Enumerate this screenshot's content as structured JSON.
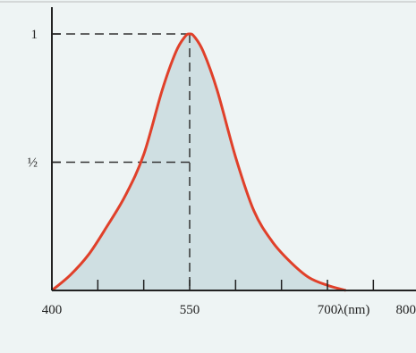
{
  "chart_data": {
    "type": "area",
    "title": "",
    "xlabel": "λ(nm)",
    "ylabel": "",
    "xlim": [
      400,
      800
    ],
    "ylim": [
      0,
      1
    ],
    "x_ticks": [
      400,
      550,
      700,
      800
    ],
    "x_tick_labels": [
      "400",
      "550",
      "700",
      "800"
    ],
    "y_ticks": [
      0.5,
      1
    ],
    "y_tick_labels": [
      "½",
      "1"
    ],
    "grid": false,
    "legend": "none",
    "series": [
      {
        "x": [
          400,
          420,
          440,
          460,
          480,
          500,
          520,
          535,
          545,
          550,
          555,
          565,
          580,
          600,
          620,
          640,
          660,
          680,
          700,
          720
        ],
        "y": [
          0.0,
          0.06,
          0.14,
          0.25,
          0.37,
          0.53,
          0.78,
          0.93,
          0.99,
          1.0,
          0.99,
          0.93,
          0.78,
          0.52,
          0.31,
          0.19,
          0.11,
          0.05,
          0.02,
          0.0
        ]
      }
    ],
    "reference_lines": [
      {
        "axis": "x",
        "value": 550
      },
      {
        "axis": "y",
        "value": 1
      },
      {
        "axis": "y",
        "value": 0.5
      }
    ],
    "colors": {
      "curve": "#e0402a",
      "fill": "#c9dade",
      "background": "#eef4f4",
      "axis": "#222222",
      "dashes": "#333333"
    }
  }
}
